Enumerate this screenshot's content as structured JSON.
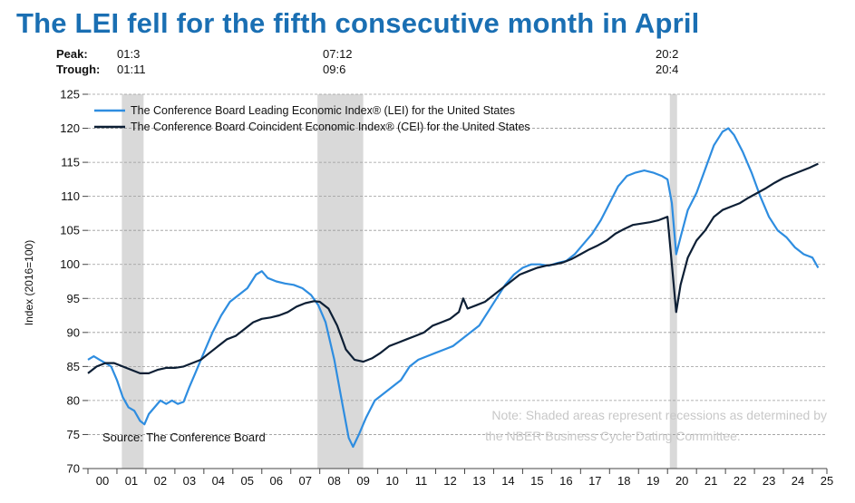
{
  "title": "The LEI fell for the fifth consecutive month in April",
  "peak_trough": {
    "peak_label": "Peak:",
    "trough_label": "Trough:",
    "recessions": [
      {
        "peak": "01:3",
        "trough": "01:11"
      },
      {
        "peak": "07:12",
        "trough": "09:6"
      },
      {
        "peak": "20:2",
        "trough": "20:4"
      }
    ]
  },
  "chart_data": {
    "type": "line",
    "title": "The LEI fell for the fifth consecutive month in April",
    "ylabel": "Index (2016=100)",
    "xlabel": "",
    "ylim": [
      70,
      125
    ],
    "xlim": [
      2000,
      2025.5
    ],
    "yticks": [
      70,
      75,
      80,
      85,
      90,
      95,
      100,
      105,
      110,
      115,
      120,
      125
    ],
    "xtick_labels": [
      "00",
      "01",
      "02",
      "03",
      "04",
      "05",
      "06",
      "07",
      "08",
      "09",
      "10",
      "11",
      "12",
      "13",
      "14",
      "15",
      "16",
      "17",
      "18",
      "19",
      "20",
      "21",
      "22",
      "23",
      "24",
      "25"
    ],
    "grid": true,
    "legend_position": "top-left",
    "recessions": [
      {
        "start": 2001.17,
        "end": 2001.92
      },
      {
        "start": 2007.92,
        "end": 2009.5
      },
      {
        "start": 2020.08,
        "end": 2020.33
      }
    ],
    "series": [
      {
        "name": "The Conference Board Leading Economic Index® (LEI) for the United States",
        "color": "#2e8de0",
        "points": [
          [
            2000.0,
            86.0
          ],
          [
            2000.2,
            86.5
          ],
          [
            2000.4,
            86.0
          ],
          [
            2000.6,
            85.5
          ],
          [
            2000.8,
            85.0
          ],
          [
            2001.0,
            83.0
          ],
          [
            2001.2,
            80.5
          ],
          [
            2001.4,
            79.0
          ],
          [
            2001.6,
            78.5
          ],
          [
            2001.8,
            77.0
          ],
          [
            2001.95,
            76.5
          ],
          [
            2002.1,
            78.0
          ],
          [
            2002.3,
            79.0
          ],
          [
            2002.5,
            80.0
          ],
          [
            2002.7,
            79.5
          ],
          [
            2002.9,
            80.0
          ],
          [
            2003.1,
            79.5
          ],
          [
            2003.3,
            79.8
          ],
          [
            2003.5,
            82.0
          ],
          [
            2003.7,
            84.0
          ],
          [
            2004.0,
            87.0
          ],
          [
            2004.3,
            90.0
          ],
          [
            2004.6,
            92.5
          ],
          [
            2004.9,
            94.5
          ],
          [
            2005.2,
            95.5
          ],
          [
            2005.5,
            96.5
          ],
          [
            2005.8,
            98.5
          ],
          [
            2006.0,
            99.0
          ],
          [
            2006.2,
            98.0
          ],
          [
            2006.5,
            97.5
          ],
          [
            2006.8,
            97.2
          ],
          [
            2007.1,
            97.0
          ],
          [
            2007.4,
            96.5
          ],
          [
            2007.7,
            95.5
          ],
          [
            2007.95,
            94.0
          ],
          [
            2008.2,
            91.5
          ],
          [
            2008.5,
            86.0
          ],
          [
            2008.8,
            79.0
          ],
          [
            2009.0,
            74.5
          ],
          [
            2009.15,
            73.2
          ],
          [
            2009.35,
            75.0
          ],
          [
            2009.6,
            77.5
          ],
          [
            2009.9,
            80.0
          ],
          [
            2010.2,
            81.0
          ],
          [
            2010.5,
            82.0
          ],
          [
            2010.8,
            83.0
          ],
          [
            2011.1,
            85.0
          ],
          [
            2011.4,
            86.0
          ],
          [
            2011.7,
            86.5
          ],
          [
            2012.0,
            87.0
          ],
          [
            2012.3,
            87.5
          ],
          [
            2012.6,
            88.0
          ],
          [
            2012.9,
            89.0
          ],
          [
            2013.2,
            90.0
          ],
          [
            2013.5,
            91.0
          ],
          [
            2013.8,
            93.0
          ],
          [
            2014.1,
            95.0
          ],
          [
            2014.4,
            97.0
          ],
          [
            2014.7,
            98.5
          ],
          [
            2015.0,
            99.5
          ],
          [
            2015.3,
            100.0
          ],
          [
            2015.6,
            100.0
          ],
          [
            2015.9,
            99.8
          ],
          [
            2016.2,
            100.2
          ],
          [
            2016.5,
            100.5
          ],
          [
            2016.8,
            101.5
          ],
          [
            2017.1,
            103.0
          ],
          [
            2017.4,
            104.5
          ],
          [
            2017.7,
            106.5
          ],
          [
            2018.0,
            109.0
          ],
          [
            2018.3,
            111.5
          ],
          [
            2018.6,
            113.0
          ],
          [
            2018.9,
            113.5
          ],
          [
            2019.2,
            113.8
          ],
          [
            2019.5,
            113.5
          ],
          [
            2019.8,
            113.0
          ],
          [
            2020.0,
            112.5
          ],
          [
            2020.15,
            109.0
          ],
          [
            2020.3,
            101.5
          ],
          [
            2020.45,
            104.0
          ],
          [
            2020.7,
            108.0
          ],
          [
            2021.0,
            110.5
          ],
          [
            2021.3,
            114.0
          ],
          [
            2021.6,
            117.5
          ],
          [
            2021.9,
            119.5
          ],
          [
            2022.1,
            120.0
          ],
          [
            2022.3,
            119.0
          ],
          [
            2022.6,
            116.5
          ],
          [
            2022.9,
            113.5
          ],
          [
            2023.2,
            110.0
          ],
          [
            2023.5,
            107.0
          ],
          [
            2023.8,
            105.0
          ],
          [
            2024.1,
            104.0
          ],
          [
            2024.4,
            102.5
          ],
          [
            2024.7,
            101.5
          ],
          [
            2025.0,
            101.0
          ],
          [
            2025.2,
            99.5
          ]
        ]
      },
      {
        "name": "The Conference Board Coincident Economic Index® (CEI) for the United States",
        "color": "#0d1f35",
        "points": [
          [
            2000.0,
            84.0
          ],
          [
            2000.3,
            85.0
          ],
          [
            2000.6,
            85.5
          ],
          [
            2000.9,
            85.5
          ],
          [
            2001.2,
            85.0
          ],
          [
            2001.5,
            84.5
          ],
          [
            2001.8,
            84.0
          ],
          [
            2002.1,
            84.0
          ],
          [
            2002.4,
            84.5
          ],
          [
            2002.7,
            84.8
          ],
          [
            2003.0,
            84.8
          ],
          [
            2003.3,
            85.0
          ],
          [
            2003.6,
            85.5
          ],
          [
            2003.9,
            86.0
          ],
          [
            2004.2,
            87.0
          ],
          [
            2004.5,
            88.0
          ],
          [
            2004.8,
            89.0
          ],
          [
            2005.1,
            89.5
          ],
          [
            2005.4,
            90.5
          ],
          [
            2005.7,
            91.5
          ],
          [
            2006.0,
            92.0
          ],
          [
            2006.3,
            92.2
          ],
          [
            2006.6,
            92.5
          ],
          [
            2006.9,
            93.0
          ],
          [
            2007.2,
            93.8
          ],
          [
            2007.5,
            94.3
          ],
          [
            2007.8,
            94.6
          ],
          [
            2008.0,
            94.5
          ],
          [
            2008.3,
            93.5
          ],
          [
            2008.6,
            91.0
          ],
          [
            2008.9,
            87.5
          ],
          [
            2009.2,
            86.0
          ],
          [
            2009.5,
            85.7
          ],
          [
            2009.8,
            86.2
          ],
          [
            2010.1,
            87.0
          ],
          [
            2010.4,
            88.0
          ],
          [
            2010.7,
            88.5
          ],
          [
            2011.0,
            89.0
          ],
          [
            2011.3,
            89.5
          ],
          [
            2011.6,
            90.0
          ],
          [
            2011.9,
            91.0
          ],
          [
            2012.2,
            91.5
          ],
          [
            2012.5,
            92.0
          ],
          [
            2012.8,
            93.0
          ],
          [
            2012.95,
            95.0
          ],
          [
            2013.1,
            93.5
          ],
          [
            2013.4,
            94.0
          ],
          [
            2013.7,
            94.5
          ],
          [
            2014.0,
            95.5
          ],
          [
            2014.3,
            96.5
          ],
          [
            2014.6,
            97.5
          ],
          [
            2014.9,
            98.5
          ],
          [
            2015.2,
            99.0
          ],
          [
            2015.5,
            99.5
          ],
          [
            2015.8,
            99.8
          ],
          [
            2016.1,
            100.0
          ],
          [
            2016.4,
            100.3
          ],
          [
            2016.7,
            100.8
          ],
          [
            2017.0,
            101.5
          ],
          [
            2017.3,
            102.2
          ],
          [
            2017.6,
            102.8
          ],
          [
            2017.9,
            103.5
          ],
          [
            2018.2,
            104.5
          ],
          [
            2018.5,
            105.2
          ],
          [
            2018.8,
            105.8
          ],
          [
            2019.1,
            106.0
          ],
          [
            2019.4,
            106.2
          ],
          [
            2019.7,
            106.5
          ],
          [
            2020.0,
            107.0
          ],
          [
            2020.15,
            100.0
          ],
          [
            2020.3,
            93.0
          ],
          [
            2020.45,
            97.0
          ],
          [
            2020.7,
            101.0
          ],
          [
            2021.0,
            103.5
          ],
          [
            2021.3,
            105.0
          ],
          [
            2021.6,
            107.0
          ],
          [
            2021.9,
            108.0
          ],
          [
            2022.2,
            108.5
          ],
          [
            2022.5,
            109.0
          ],
          [
            2022.8,
            109.8
          ],
          [
            2023.1,
            110.5
          ],
          [
            2023.4,
            111.2
          ],
          [
            2023.7,
            112.0
          ],
          [
            2024.0,
            112.7
          ],
          [
            2024.3,
            113.2
          ],
          [
            2024.6,
            113.7
          ],
          [
            2024.9,
            114.2
          ],
          [
            2025.2,
            114.8
          ]
        ]
      }
    ],
    "annotations": [
      "Note: Shaded areas represent recessions as determined by",
      "the NBER Business Cycle Dating Committee.",
      "Source: The Conference Board"
    ]
  }
}
